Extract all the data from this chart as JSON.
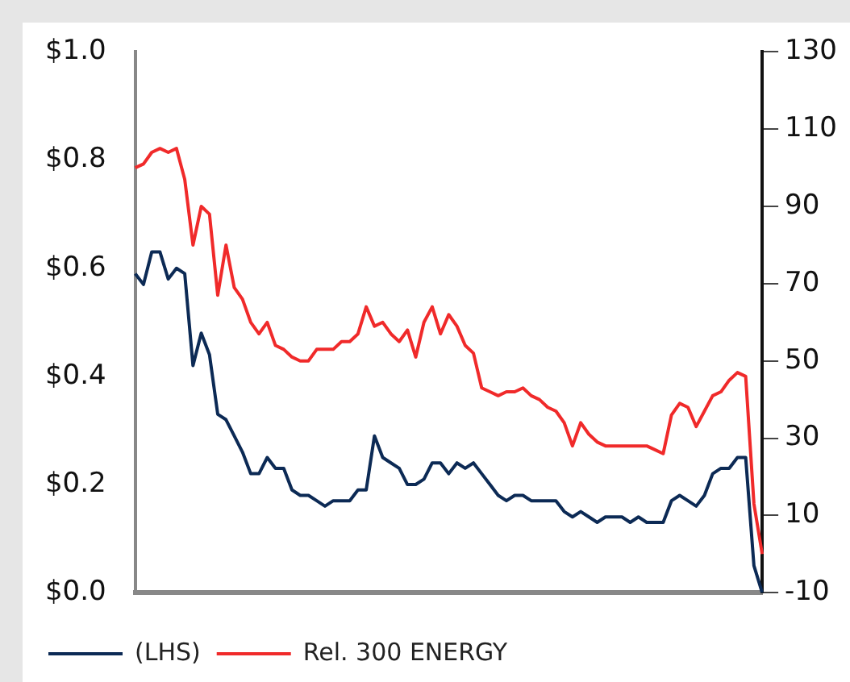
{
  "chart_data": {
    "type": "line",
    "categories": [
      null,
      null,
      null,
      null,
      null,
      null,
      null,
      null,
      null,
      null,
      null,
      null,
      null,
      null,
      null,
      null,
      null,
      null,
      null,
      null,
      null,
      null,
      null,
      null,
      null,
      null,
      null,
      null,
      null,
      null,
      null,
      null,
      null,
      null,
      null,
      null,
      null,
      null,
      null,
      null,
      null,
      null,
      null,
      null,
      null,
      null,
      null,
      null,
      null,
      null,
      null,
      null,
      null,
      null,
      null,
      null,
      null,
      null,
      null,
      null,
      null,
      null,
      null,
      null,
      null,
      null,
      null,
      null,
      null,
      null,
      null,
      null,
      null,
      null,
      null,
      null,
      null
    ],
    "series": [
      {
        "name": "(LHS)",
        "color": "#0c2a55",
        "values": [
          0.59,
          0.57,
          0.63,
          0.63,
          0.58,
          0.6,
          0.59,
          0.42,
          0.48,
          0.44,
          0.33,
          0.32,
          0.29,
          0.26,
          0.22,
          0.22,
          0.25,
          0.23,
          0.23,
          0.19,
          0.18,
          0.18,
          0.17,
          0.16,
          0.17,
          0.17,
          0.17,
          0.19,
          0.19,
          0.29,
          0.25,
          0.24,
          0.23,
          0.2,
          0.2,
          0.21,
          0.24,
          0.24,
          0.22,
          0.24,
          0.23,
          0.24,
          0.22,
          0.2,
          0.18,
          0.17,
          0.18,
          0.18,
          0.17,
          0.17,
          0.17,
          0.17,
          0.15,
          0.14,
          0.15,
          0.14,
          0.13,
          0.14,
          0.14,
          0.14,
          0.13,
          0.14,
          0.13,
          0.13,
          0.13,
          0.17,
          0.18,
          0.17,
          0.16,
          0.18,
          0.22,
          0.23,
          0.23,
          0.25,
          0.25,
          0.05,
          0.0
        ]
      },
      {
        "name": "Rel. 300 ENERGY",
        "color": "#f02a2a",
        "axis": "y2",
        "values": [
          100,
          101,
          104,
          105,
          104,
          105,
          97,
          80,
          90,
          88,
          67,
          80,
          69,
          66,
          60,
          57,
          60,
          54,
          53,
          51,
          50,
          50,
          53,
          53,
          53,
          55,
          55,
          57,
          64,
          59,
          60,
          57,
          55,
          58,
          51,
          60,
          64,
          57,
          62,
          59,
          54,
          52,
          43,
          42,
          41,
          42,
          42,
          43,
          41,
          40,
          38,
          37,
          34,
          28,
          34,
          31,
          29,
          28,
          28,
          28,
          28,
          28,
          28,
          27,
          26,
          36,
          39,
          38,
          33,
          37,
          41,
          42,
          45,
          47,
          46,
          13,
          0
        ]
      }
    ],
    "ylim": [
      0,
      1
    ],
    "yticks": [
      {
        "value": 0,
        "label": "$0.0"
      },
      {
        "value": 0.2,
        "label": "$0.2"
      },
      {
        "value": 0.4,
        "label": "$0.4"
      },
      {
        "value": 0.6,
        "label": "$0.6"
      },
      {
        "value": 0.8,
        "label": "$0.8"
      },
      {
        "value": 1,
        "label": "$1.0"
      }
    ],
    "y2lim": [
      -10,
      130
    ],
    "y2ticks": [
      -10,
      10,
      30,
      50,
      70,
      90,
      110,
      130
    ],
    "grid": false,
    "legend": "bottom",
    "marker": "none",
    "line_style": "solid"
  }
}
